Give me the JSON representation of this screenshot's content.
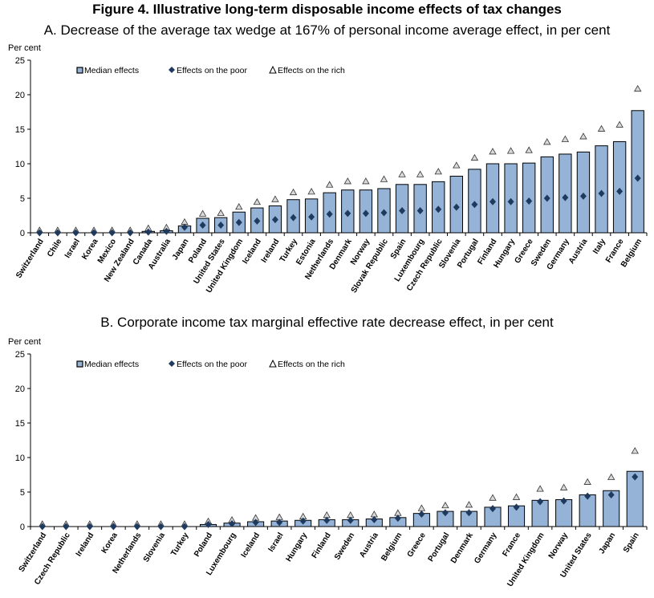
{
  "figure_title": "Figure 4.  Illustrative long-term disposable income effects of tax changes",
  "legend": {
    "median": "Median effects",
    "poor": "Effects on the poor",
    "rich": "Effects on the rich"
  },
  "colors": {
    "bar_fill": "#95b3d7",
    "bar_stroke": "#000000",
    "poor_marker": "#1f3a5f",
    "rich_marker": "#d9d9d9",
    "axis": "#000000"
  },
  "chart_data": [
    {
      "type": "bar",
      "title": "A. Decrease of the average tax wedge at 167% of personal income average effect, in per cent",
      "ylabel": "Per cent",
      "ylim": [
        0,
        25
      ],
      "yticks": [
        0,
        5,
        10,
        15,
        20,
        25
      ],
      "grid": false,
      "legend_position": "top-left",
      "categories": [
        "Switzerland",
        "Chile",
        "Israel",
        "Korea",
        "Mexico",
        "New Zealand",
        "Canada",
        "Australia",
        "Japan",
        "Poland",
        "United States",
        "United Kingdom",
        "Iceland",
        "Ireland",
        "Turkey",
        "Estonia",
        "Netherlands",
        "Denmark",
        "Norway",
        "Slovak Republic",
        "Spain",
        "Luxembourg",
        "Czech Republic",
        "Slovenia",
        "Portugal",
        "Finland",
        "Hungary",
        "Greece",
        "Sweden",
        "Germany",
        "Austria",
        "Italy",
        "France",
        "Belgium"
      ],
      "series": [
        {
          "name": "Median effects",
          "values": [
            0,
            0,
            0,
            0,
            0,
            0,
            0.2,
            0.3,
            1.0,
            2.1,
            2.2,
            3.0,
            3.6,
            3.9,
            4.8,
            4.9,
            5.8,
            6.2,
            6.2,
            6.4,
            7.0,
            7.0,
            7.4,
            8.2,
            9.2,
            10.0,
            10.0,
            10.1,
            11.0,
            11.4,
            11.7,
            12.6,
            13.2,
            17.7
          ]
        },
        {
          "name": "Effects on the poor",
          "values": [
            0,
            0,
            0,
            0,
            0,
            0,
            0.1,
            0.2,
            0.8,
            1.1,
            1.1,
            1.5,
            1.7,
            1.9,
            2.2,
            2.3,
            2.7,
            2.8,
            2.8,
            2.9,
            3.2,
            3.2,
            3.4,
            3.7,
            4.1,
            4.5,
            4.5,
            4.6,
            5.0,
            5.1,
            5.3,
            5.7,
            6.0,
            7.9
          ]
        },
        {
          "name": "Effects on the rich",
          "values": [
            0,
            0,
            0,
            0,
            0,
            0,
            0.3,
            0.4,
            1.2,
            2.4,
            2.5,
            3.4,
            4.1,
            4.5,
            5.5,
            5.6,
            6.6,
            7.1,
            7.1,
            7.4,
            8.1,
            8.1,
            8.5,
            9.4,
            10.5,
            11.4,
            11.5,
            11.6,
            12.8,
            13.2,
            13.6,
            14.7,
            15.3,
            20.5
          ]
        }
      ]
    },
    {
      "type": "bar",
      "title": "B. Corporate income tax marginal effective rate decrease effect, in per cent",
      "ylabel": "Per cent",
      "ylim": [
        0,
        25
      ],
      "yticks": [
        0,
        5,
        10,
        15,
        20,
        25
      ],
      "grid": false,
      "legend_position": "top-left",
      "categories": [
        "Switzerland",
        "Czech Republic",
        "Ireland",
        "Korea",
        "Netherlands",
        "Slovenia",
        "Turkey",
        "Poland",
        "Luxembourg",
        "Iceland",
        "Israel",
        "Hungary",
        "Finland",
        "Sweden",
        "Austria",
        "Belgium",
        "Greece",
        "Portugal",
        "Denmark",
        "Germany",
        "France",
        "United Kingdom",
        "Norway",
        "United States",
        "Japan",
        "Spain"
      ],
      "series": [
        {
          "name": "Median effects",
          "values": [
            0,
            0,
            0,
            0,
            0,
            0,
            0,
            0.3,
            0.5,
            0.7,
            0.8,
            0.9,
            1.0,
            1.0,
            1.1,
            1.3,
            1.9,
            2.2,
            2.2,
            2.8,
            3.0,
            3.8,
            3.9,
            4.6,
            5.2,
            8.0
          ]
        },
        {
          "name": "Effects on the poor",
          "values": [
            0,
            0,
            0,
            0,
            0,
            0,
            0,
            0.3,
            0.4,
            0.6,
            0.6,
            0.8,
            0.9,
            0.9,
            1.0,
            1.2,
            1.8,
            2.0,
            2.0,
            2.6,
            2.8,
            3.6,
            3.7,
            4.4,
            4.6,
            7.2
          ]
        },
        {
          "name": "Effects on the rich",
          "values": [
            0,
            0,
            0,
            0,
            0,
            0,
            0,
            0.4,
            0.6,
            0.9,
            1.0,
            1.1,
            1.3,
            1.3,
            1.4,
            1.6,
            2.3,
            2.7,
            2.8,
            3.8,
            3.9,
            5.1,
            5.3,
            6.1,
            6.8,
            10.6
          ]
        }
      ]
    }
  ]
}
